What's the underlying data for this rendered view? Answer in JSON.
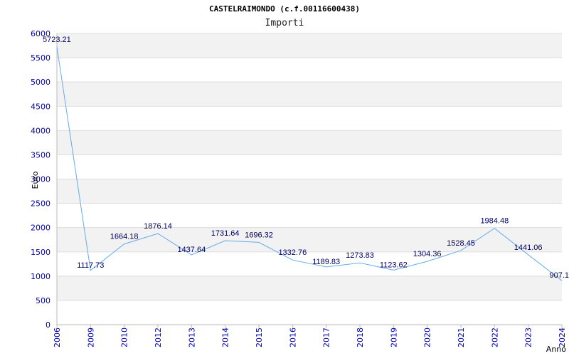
{
  "chart_data": {
    "type": "line",
    "title": "CASTELRAIMONDO (c.f.00116600438)",
    "subtitle": "Importi",
    "xlabel": "Anno",
    "ylabel": "Euro",
    "ylim": [
      0,
      6000
    ],
    "yticks": [
      0,
      500,
      1000,
      1500,
      2000,
      2500,
      3000,
      3500,
      4000,
      4500,
      5000,
      5500,
      6000
    ],
    "categories": [
      "2006",
      "2009",
      "2010",
      "2012",
      "2013",
      "2014",
      "2015",
      "2016",
      "2017",
      "2018",
      "2019",
      "2020",
      "2021",
      "2022",
      "2023",
      "2024"
    ],
    "values": [
      5723.21,
      1117.73,
      1664.18,
      1876.14,
      1437.64,
      1731.64,
      1696.32,
      1332.76,
      1189.83,
      1273.83,
      1123.62,
      1304.36,
      1528.45,
      1984.48,
      1441.06,
      907.1
    ],
    "value_labels": [
      "5723.21",
      "1117.73",
      "1664.18",
      "1876.14",
      "1437.64",
      "1731.64",
      "1696.32",
      "1332.76",
      "1189.83",
      "1273.83",
      "1123.62",
      "1304.36",
      "1528.45",
      "1984.48",
      "1441.06",
      "907.1"
    ],
    "grid": true,
    "colors": {
      "line": "#66aaee",
      "band": "#f2f2f2",
      "tick_text": "#0000aa",
      "label_text": "#000066"
    }
  }
}
